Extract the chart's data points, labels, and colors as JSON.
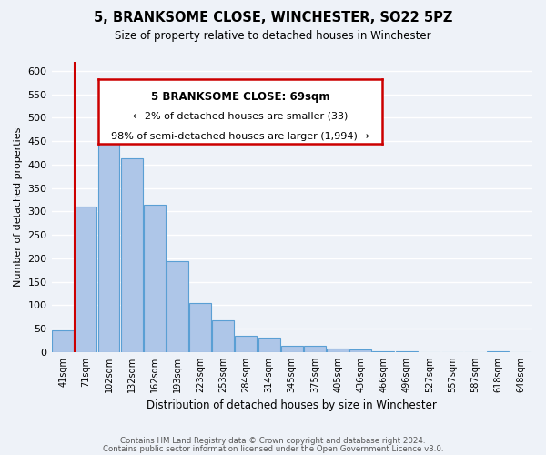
{
  "title": "5, BRANKSOME CLOSE, WINCHESTER, SO22 5PZ",
  "subtitle": "Size of property relative to detached houses in Winchester",
  "xlabel": "Distribution of detached houses by size in Winchester",
  "ylabel": "Number of detached properties",
  "bar_color": "#aec6e8",
  "bar_edge_color": "#5a9fd4",
  "highlight_edge_color": "#cc0000",
  "bin_labels": [
    "41sqm",
    "71sqm",
    "102sqm",
    "132sqm",
    "162sqm",
    "193sqm",
    "223sqm",
    "253sqm",
    "284sqm",
    "314sqm",
    "345sqm",
    "375sqm",
    "405sqm",
    "436sqm",
    "466sqm",
    "496sqm",
    "527sqm",
    "557sqm",
    "587sqm",
    "618sqm",
    "648sqm"
  ],
  "bar_heights": [
    46,
    310,
    478,
    414,
    315,
    193,
    105,
    68,
    35,
    30,
    14,
    14,
    8,
    5,
    2,
    1,
    0,
    0,
    0,
    2,
    0
  ],
  "highlight_bar_index": 0,
  "annotation_title": "5 BRANKSOME CLOSE: 69sqm",
  "annotation_line1": "← 2% of detached houses are smaller (33)",
  "annotation_line2": "98% of semi-detached houses are larger (1,994) →",
  "ylim": [
    0,
    620
  ],
  "yticks": [
    0,
    50,
    100,
    150,
    200,
    250,
    300,
    350,
    400,
    450,
    500,
    550,
    600
  ],
  "footer1": "Contains HM Land Registry data © Crown copyright and database right 2024.",
  "footer2": "Contains public sector information licensed under the Open Government Licence v3.0.",
  "bg_color": "#eef2f8",
  "grid_color": "#ffffff"
}
